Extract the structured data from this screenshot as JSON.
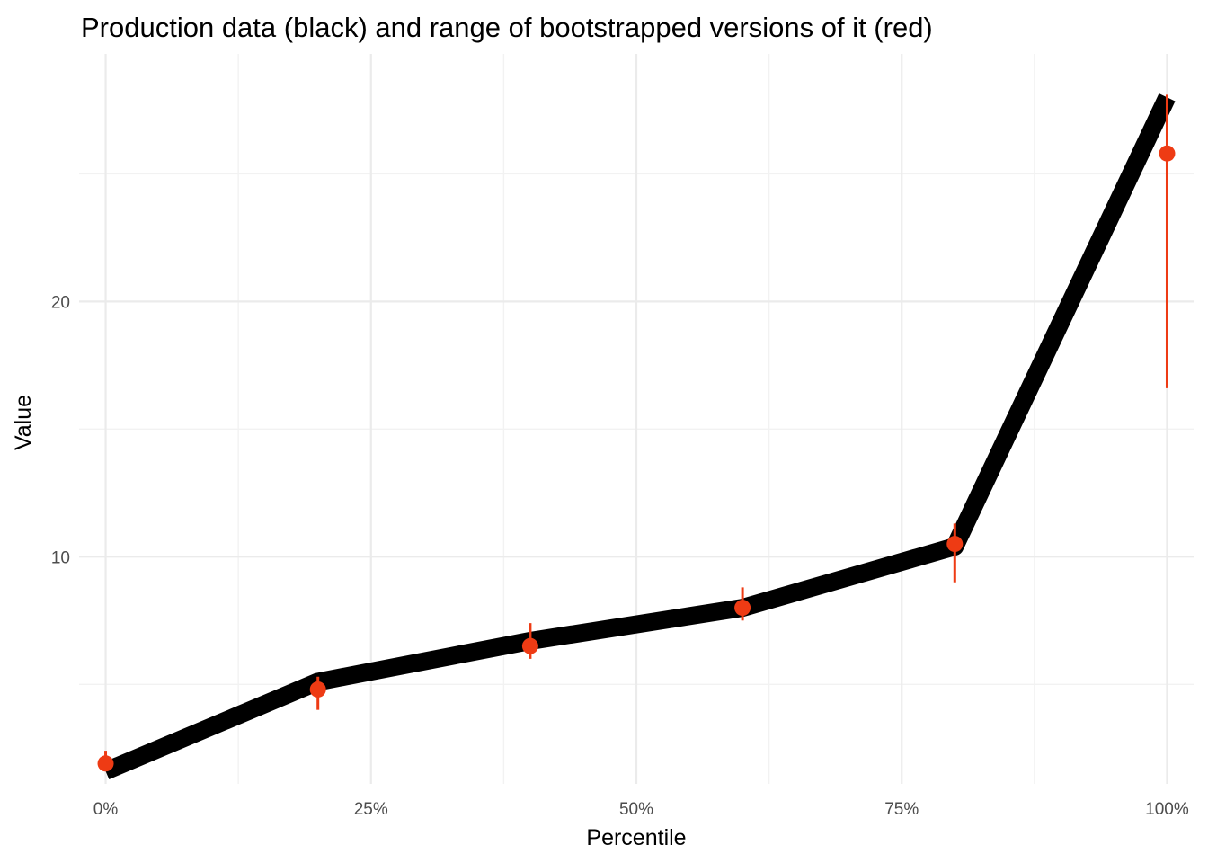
{
  "chart_data": {
    "type": "line",
    "title": "Production data (black) and range of bootstrapped versions of it (red)",
    "xlabel": "Percentile",
    "ylabel": "Value",
    "x_tick_labels": [
      "0%",
      "25%",
      "50%",
      "75%",
      "100%"
    ],
    "x_ticks": [
      0,
      25,
      50,
      75,
      100
    ],
    "y_tick_labels": [
      "10",
      "20"
    ],
    "y_ticks": [
      10,
      20
    ],
    "xlim": [
      -2.5,
      102.5
    ],
    "ylim": [
      1.1,
      29.7
    ],
    "grid": true,
    "series": [
      {
        "color": "#000000",
        "x": [
          0,
          20,
          40,
          60,
          80,
          100
        ],
        "y": [
          1.6,
          5.1,
          6.7,
          8.0,
          10.4,
          28.0
        ]
      },
      {
        "color": "#ee3b14",
        "x": [
          0,
          20,
          40,
          60,
          80,
          100
        ],
        "y": [
          1.9,
          4.8,
          6.5,
          8.0,
          10.5,
          25.8
        ],
        "ymin": [
          1.6,
          4.0,
          6.0,
          7.5,
          9.0,
          16.6
        ],
        "ymax": [
          2.4,
          5.3,
          7.4,
          8.8,
          11.3,
          28.1
        ]
      }
    ]
  }
}
